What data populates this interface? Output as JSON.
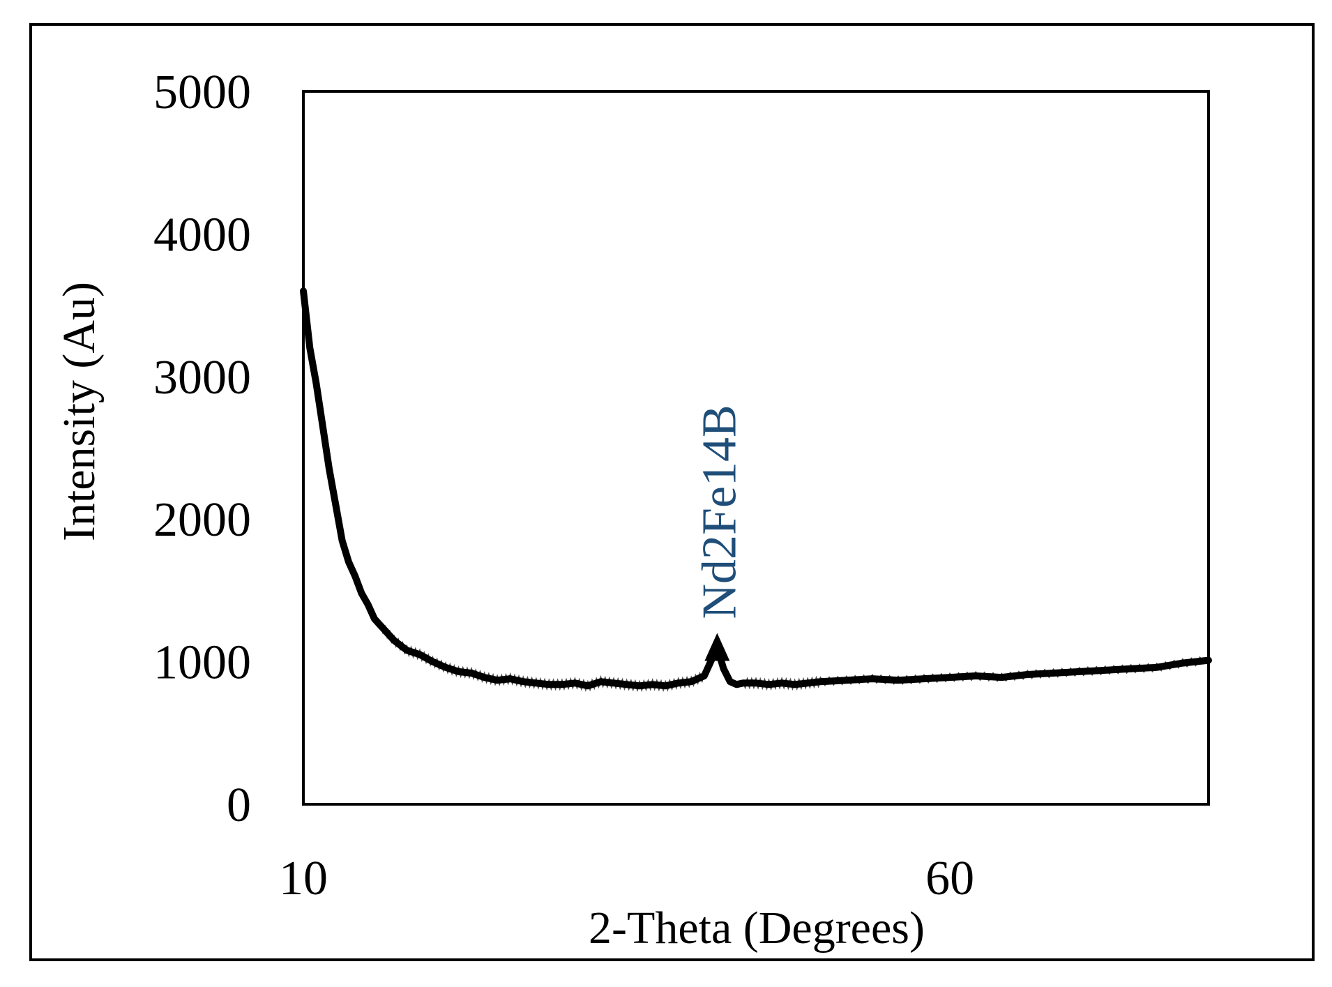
{
  "chart_data": {
    "type": "line",
    "title": "",
    "xlabel": "2-Theta (Degrees)",
    "ylabel": "Intensity  (Au)",
    "xlim": [
      10,
      80
    ],
    "ylim": [
      0,
      5000
    ],
    "x_ticks": [
      {
        "value": 10,
        "label": "10"
      },
      {
        "value": 60,
        "label": "60"
      }
    ],
    "y_ticks": [
      {
        "value": 0,
        "label": "0"
      },
      {
        "value": 1000,
        "label": "1000"
      },
      {
        "value": 2000,
        "label": "2000"
      },
      {
        "value": 3000,
        "label": "3000"
      },
      {
        "value": 4000,
        "label": "4000"
      },
      {
        "value": 5000,
        "label": "5000"
      }
    ],
    "grid": false,
    "legend": "none",
    "series": [
      {
        "color": "#000000",
        "x": [
          10,
          10.5,
          11,
          11.5,
          12,
          12.5,
          13,
          13.5,
          14,
          14.5,
          15,
          15.5,
          16,
          17,
          18,
          19,
          20,
          21,
          22,
          23,
          24,
          25,
          26,
          27,
          28,
          29,
          30,
          31,
          32,
          33,
          34,
          35,
          36,
          37,
          38,
          39,
          40,
          41,
          41.5,
          42,
          42.5,
          43,
          43.5,
          44,
          45,
          46,
          47,
          48,
          49,
          50,
          52,
          54,
          56,
          58,
          60,
          62,
          64,
          66,
          68,
          70,
          72,
          74,
          76,
          78,
          80
        ],
        "y": [
          3600,
          3200,
          2950,
          2650,
          2350,
          2100,
          1850,
          1700,
          1600,
          1480,
          1400,
          1300,
          1250,
          1150,
          1080,
          1050,
          1000,
          960,
          930,
          920,
          890,
          870,
          880,
          860,
          850,
          840,
          840,
          850,
          830,
          860,
          850,
          840,
          830,
          840,
          830,
          850,
          860,
          900,
          1000,
          1100,
          950,
          860,
          840,
          850,
          850,
          840,
          850,
          840,
          850,
          860,
          870,
          880,
          870,
          880,
          890,
          900,
          890,
          910,
          920,
          930,
          940,
          950,
          960,
          990,
          1010
        ]
      }
    ],
    "annotations": [
      {
        "text": "Nd2Fe14B",
        "x": 42,
        "y": 1250,
        "marker": "triangle-up"
      }
    ]
  }
}
